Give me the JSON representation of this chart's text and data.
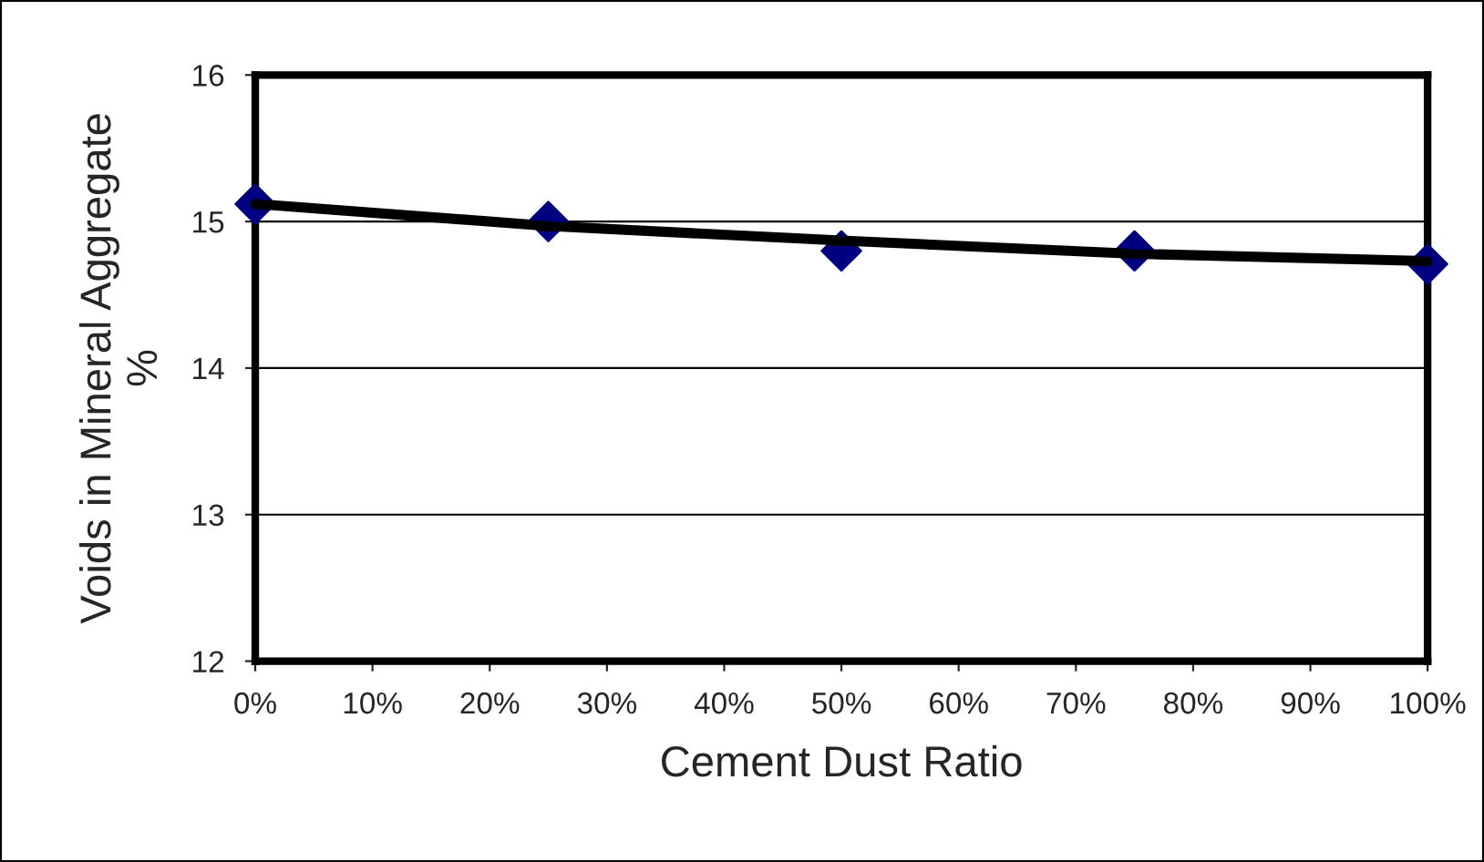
{
  "chart_data": {
    "type": "scatter",
    "xlabel": "Cement Dust Ratio",
    "ylabel": "Voids in Mineral Aggregate\n%",
    "x": [
      0,
      25,
      50,
      75,
      100
    ],
    "series": [
      {
        "color": "#000080",
        "marker": "diamond",
        "values": [
          15.12,
          15.0,
          14.8,
          14.8,
          14.71
        ]
      },
      {
        "type": "line",
        "color": "#000000",
        "marker": "none",
        "x": [
          0,
          25,
          50,
          75,
          100
        ],
        "values": [
          15.12,
          14.97,
          14.87,
          14.78,
          14.73
        ]
      }
    ],
    "xlim": [
      0,
      100
    ],
    "ylim": [
      12,
      16
    ],
    "xticks": [
      {
        "value": 0,
        "label": "0%"
      },
      {
        "value": 10,
        "label": "10%"
      },
      {
        "value": 20,
        "label": "20%"
      },
      {
        "value": 30,
        "label": "30%"
      },
      {
        "value": 40,
        "label": "40%"
      },
      {
        "value": 50,
        "label": "50%"
      },
      {
        "value": 60,
        "label": "60%"
      },
      {
        "value": 70,
        "label": "70%"
      },
      {
        "value": 80,
        "label": "80%"
      },
      {
        "value": 90,
        "label": "90%"
      },
      {
        "value": 100,
        "label": "100%"
      }
    ],
    "yticks": [
      12,
      13,
      14,
      15,
      16
    ],
    "grid": "y",
    "legend": false
  }
}
